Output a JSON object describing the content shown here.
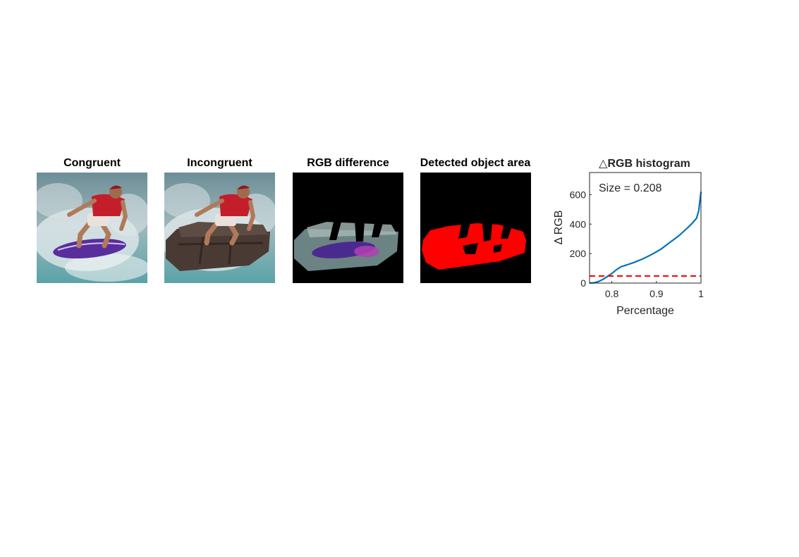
{
  "panels": [
    {
      "title": "Congruent"
    },
    {
      "title": "Incongruent"
    },
    {
      "title": "RGB difference"
    },
    {
      "title": "Detected object area"
    }
  ],
  "colors": {
    "water": "#5e8f98",
    "foam": "#e4ecee",
    "shirt": "#c41e2a",
    "board": "#5a2d9c",
    "sofa": "#4a3a34",
    "mask": "#ff0000",
    "background": "#000000",
    "curve": "#0072bd",
    "threshold": "#ff0000"
  },
  "chart_data": {
    "type": "line",
    "title": "△RGB histogram",
    "xlabel": "Percentage",
    "ylabel": "Δ RGB",
    "xlim": [
      0.75,
      1.0
    ],
    "ylim": [
      0,
      750
    ],
    "xticks": [
      0.8,
      0.9,
      1
    ],
    "xtick_labels": [
      "0.8",
      "0.9",
      "1"
    ],
    "yticks": [
      0,
      200,
      400,
      600
    ],
    "ytick_labels": [
      "0",
      "200",
      "400",
      "600"
    ],
    "annotation": "Size = 0.208",
    "grid": false,
    "series": [
      {
        "style": "solid",
        "x": [
          0.75,
          0.76,
          0.77,
          0.78,
          0.79,
          0.8,
          0.81,
          0.82,
          0.83,
          0.85,
          0.87,
          0.89,
          0.91,
          0.93,
          0.95,
          0.97,
          0.98,
          0.99,
          0.995,
          1.0
        ],
        "y": [
          0,
          2,
          10,
          25,
          45,
          65,
          90,
          110,
          120,
          140,
          165,
          195,
          230,
          275,
          320,
          375,
          405,
          440,
          490,
          620
        ]
      },
      {
        "style": "dashed",
        "x": [
          0.75,
          1.0
        ],
        "y": [
          48,
          48
        ]
      }
    ]
  }
}
